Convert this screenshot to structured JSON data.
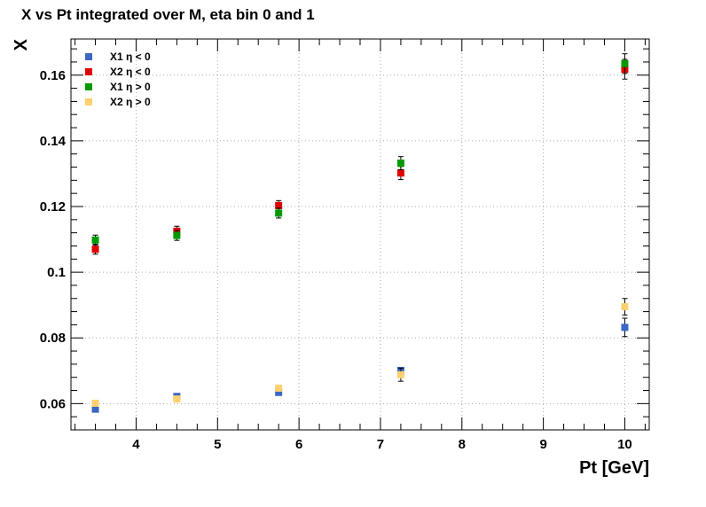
{
  "chart_data": {
    "type": "scatter",
    "title": "X vs Pt integrated over M, eta bin 0 and 1",
    "xlabel": "Pt [GeV]",
    "ylabel": "X",
    "xlim": [
      3.2,
      10.3
    ],
    "ylim": [
      0.052,
      0.171
    ],
    "xticks": [
      4,
      5,
      6,
      7,
      8,
      9,
      10
    ],
    "yticks": [
      0.06,
      0.08,
      0.1,
      0.12,
      0.14,
      0.16
    ],
    "ytick_labels": [
      "0.06",
      "0.08",
      "0.1",
      "0.12",
      "0.14",
      "0.16"
    ],
    "grid": true,
    "legend_position": "top-left",
    "x": [
      3.5,
      4.5,
      5.75,
      7.25,
      10.0
    ],
    "series": [
      {
        "name": "X1 η < 0",
        "color": "#3a68c4",
        "values": [
          0.0583,
          0.0622,
          0.0634,
          0.0701,
          0.0832
        ],
        "errors": [
          0.0008,
          0.0008,
          0.0008,
          0.0008,
          0.0028
        ]
      },
      {
        "name": "X2 η < 0",
        "color": "#e00000",
        "values": [
          0.107,
          0.1125,
          0.1203,
          0.1302,
          0.1618
        ],
        "errors": [
          0.0015,
          0.0015,
          0.0015,
          0.002,
          0.003
        ]
      },
      {
        "name": "X1 η > 0",
        "color": "#009a00",
        "values": [
          0.1098,
          0.1112,
          0.118,
          0.1332,
          0.1635
        ],
        "errors": [
          0.0015,
          0.0015,
          0.0015,
          0.002,
          0.003
        ]
      },
      {
        "name": "X2 η > 0",
        "color": "#ffd070",
        "values": [
          0.0601,
          0.0614,
          0.0647,
          0.0688,
          0.0895
        ],
        "errors": [
          0.0008,
          0.0008,
          0.0008,
          0.002,
          0.0025
        ]
      }
    ]
  }
}
